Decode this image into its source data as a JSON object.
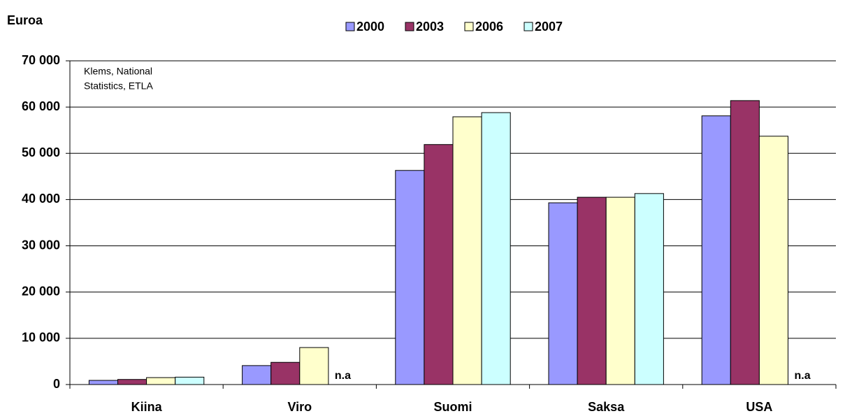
{
  "chart_data": {
    "type": "bar",
    "ylabel": "Euroa",
    "note": [
      "Klems, National",
      "Statistics, ETLA"
    ],
    "annotations": [
      "n.a",
      "n.a"
    ],
    "categories": [
      "Kiina",
      "Viro",
      "Suomi",
      "Saksa",
      "USA"
    ],
    "series": [
      {
        "name": "2000",
        "color": "#9999ff",
        "values": [
          900,
          4100,
          46300,
          39300,
          58100
        ]
      },
      {
        "name": "2003",
        "color": "#993366",
        "values": [
          1100,
          4800,
          51900,
          40500,
          61400
        ]
      },
      {
        "name": "2006",
        "color": "#ffffcc",
        "values": [
          1500,
          8000,
          57900,
          40500,
          53700
        ]
      },
      {
        "name": "2007",
        "color": "#ccffff",
        "values": [
          1600,
          null,
          58800,
          41300,
          null
        ]
      }
    ],
    "ylim": [
      0,
      70000
    ],
    "yticks": [
      {
        "value": 0,
        "label": "0"
      },
      {
        "value": 10000,
        "label": "10 000"
      },
      {
        "value": 20000,
        "label": "20 000"
      },
      {
        "value": 30000,
        "label": "30 000"
      },
      {
        "value": 40000,
        "label": "40 000"
      },
      {
        "value": 50000,
        "label": "50 000"
      },
      {
        "value": 60000,
        "label": "60 000"
      },
      {
        "value": 70000,
        "label": "70 000"
      }
    ],
    "grid": true,
    "legend": "top"
  }
}
